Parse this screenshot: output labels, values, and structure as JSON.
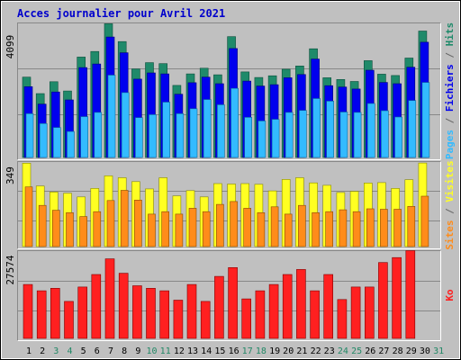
{
  "colors": {
    "background": "#c0c0c0",
    "title": "#0000cc",
    "pages": "#33bbff",
    "fichiers": "#0000ee",
    "hits": "#1f8a6a",
    "visites": "#ffff22",
    "sites": "#ff8c1a",
    "ko": "#ff2020",
    "weekend_label": "#228866",
    "weekday_label": "#000000",
    "separator": "#000000"
  },
  "chart_data": {
    "type": "bar",
    "title": "Acces journalier pour Avril 2021",
    "categories": [
      "1",
      "2",
      "3",
      "4",
      "5",
      "6",
      "7",
      "8",
      "9",
      "10",
      "11",
      "12",
      "13",
      "14",
      "15",
      "16",
      "17",
      "18",
      "19",
      "20",
      "21",
      "22",
      "23",
      "24",
      "25",
      "26",
      "27",
      "28",
      "29",
      "30",
      "31"
    ],
    "weekend_days": [
      "3",
      "4",
      "10",
      "11",
      "17",
      "18",
      "24",
      "25",
      "31"
    ],
    "panels": [
      {
        "name": "top",
        "ymax_label": "4099",
        "ymax": 4099,
        "side_labels": [
          {
            "text": "Pages",
            "color": "#33bbff"
          },
          {
            "text": " / ",
            "color": "#666666"
          },
          {
            "text": "Fichiers",
            "color": "#0000ee"
          },
          {
            "text": " / ",
            "color": "#666666"
          },
          {
            "text": "Hits",
            "color": "#1f8a6a"
          }
        ],
        "series": [
          {
            "name": "Hits",
            "values": [
              2440,
              1940,
              2300,
              2020,
              3050,
              3220,
              4060,
              3520,
              2690,
              2880,
              2850,
              2190,
              2540,
              2710,
              2510,
              3670,
              2600,
              2430,
              2480,
              2680,
              2780,
              3300,
              2420,
              2370,
              2310,
              2940,
              2530,
              2490,
              3020,
              3840,
              0
            ]
          },
          {
            "name": "Fichiers",
            "values": [
              2150,
              1620,
              1990,
              1750,
              2730,
              2840,
              3660,
              3180,
              2380,
              2570,
              2540,
              1920,
              2270,
              2440,
              2240,
              3310,
              2320,
              2170,
              2210,
              2420,
              2520,
              2990,
              2180,
              2140,
              2080,
              2650,
              2280,
              2240,
              2740,
              3500,
              0
            ]
          },
          {
            "name": "Pages",
            "values": [
              1330,
              1030,
              910,
              790,
              1240,
              1370,
              2500,
              1970,
              1210,
              1300,
              1680,
              1330,
              1480,
              1760,
              1600,
              2100,
              1220,
              1110,
              1160,
              1370,
              1430,
              1790,
              1710,
              1380,
              1370,
              1640,
              1420,
              1230,
              1730,
              2280,
              0
            ]
          }
        ]
      },
      {
        "name": "middle",
        "ymax_label": "349",
        "ymax": 349,
        "side_labels": [
          {
            "text": "Sites",
            "color": "#ff8c1a"
          },
          {
            "text": " / ",
            "color": "#666666"
          },
          {
            "text": "Visites",
            "color": "#ffff22"
          }
        ],
        "series": [
          {
            "name": "Visites",
            "values": [
              344,
              250,
              225,
              220,
              205,
              240,
              292,
              284,
              268,
              238,
              284,
              209,
              231,
              205,
              260,
              258,
              260,
              257,
              230,
              277,
              284,
              263,
              253,
              223,
              228,
              262,
              264,
              240,
              276,
              345,
              0
            ]
          },
          {
            "name": "Sites",
            "values": [
              246,
              170,
              150,
              140,
              124,
              144,
              190,
              232,
              192,
              134,
              144,
              134,
              158,
              144,
              174,
              186,
              158,
              140,
              164,
              134,
              170,
              140,
              144,
              152,
              144,
              156,
              154,
              154,
              166,
              208,
              0
            ]
          }
        ]
      },
      {
        "name": "bottom",
        "ymax_label": "27574",
        "ymax": 27574,
        "side_labels": [
          {
            "text": "Ko",
            "color": "#ff2020"
          }
        ],
        "series": [
          {
            "name": "Ko",
            "values": [
              17200,
              15200,
              16000,
              11800,
              16400,
              20400,
              25400,
              20800,
              16800,
              16000,
              15200,
              12200,
              17200,
              11800,
              19800,
              22600,
              12600,
              15200,
              17200,
              20400,
              22000,
              15200,
              20400,
              12400,
              16400,
              16400,
              24200,
              25800,
              28000,
              0,
              0
            ]
          }
        ]
      }
    ]
  }
}
